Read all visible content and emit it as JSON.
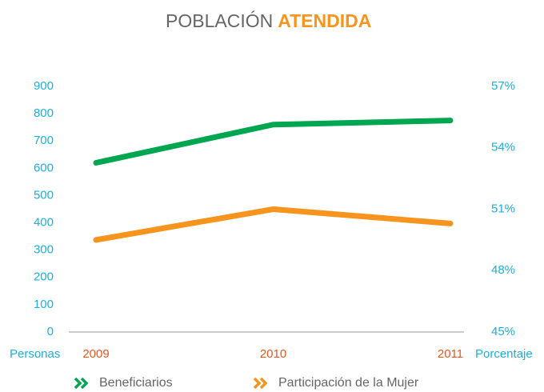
{
  "chart_data": {
    "type": "line",
    "title": "POBLACIÓN",
    "title_highlight": "ATENDIDA",
    "categories": [
      "2009",
      "2010",
      "2011"
    ],
    "series": [
      {
        "name": "Beneficiarios",
        "color": "#00a650",
        "values": [
          620,
          760,
          775
        ]
      },
      {
        "name": "Participación de la Mujer",
        "color": "#f7941d",
        "axis": "y2",
        "values": [
          49.5,
          51.0,
          50.3
        ]
      }
    ],
    "y_label": "Personas",
    "y2_label": "Porcentaje",
    "ylim": [
      0,
      900
    ],
    "yticks": [
      0,
      100,
      200,
      300,
      400,
      500,
      600,
      700,
      800,
      900
    ],
    "y2lim": [
      45,
      57
    ],
    "y2ticks": [
      {
        "value": 45,
        "label": "45%"
      },
      {
        "value": 48,
        "label": "48%"
      },
      {
        "value": 51,
        "label": "51%"
      },
      {
        "value": 54,
        "label": "54%"
      },
      {
        "value": 57,
        "label": "57%"
      }
    ],
    "grid": false
  }
}
